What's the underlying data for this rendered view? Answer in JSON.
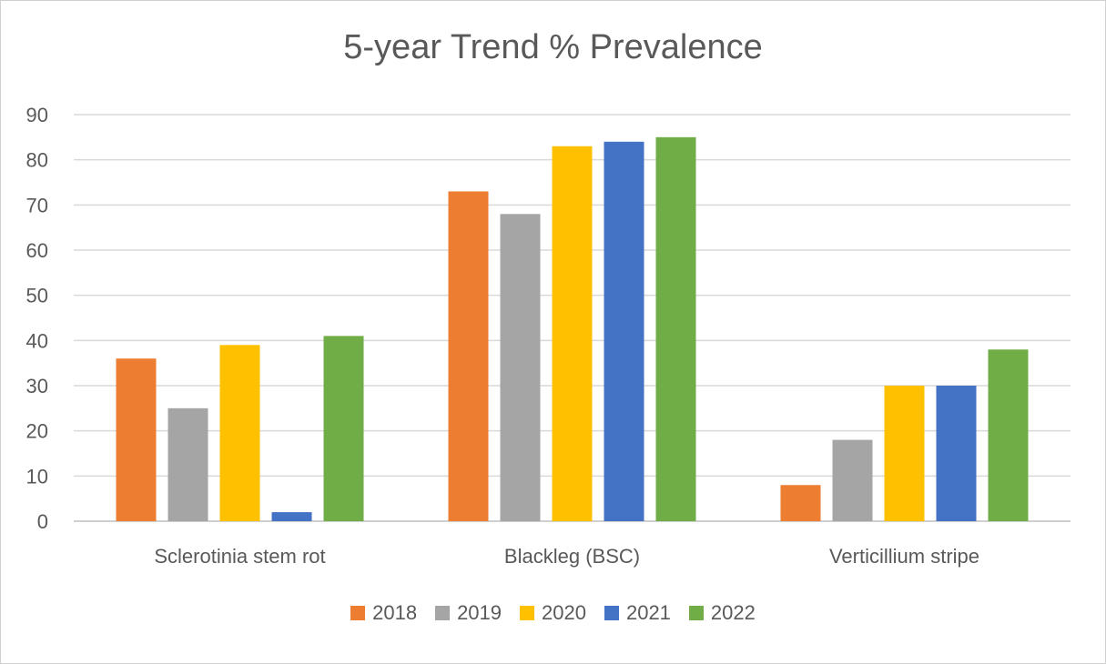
{
  "chart_data": {
    "type": "bar",
    "title": "5-year Trend % Prevalence",
    "xlabel": "",
    "ylabel": "",
    "categories": [
      "Sclerotinia stem rot",
      "Blackleg (BSC)",
      "Verticillium stripe"
    ],
    "series": [
      {
        "name": "2018",
        "color": "#ED7D31",
        "values": [
          36,
          73,
          8
        ]
      },
      {
        "name": "2019",
        "color": "#A5A5A5",
        "values": [
          25,
          68,
          18
        ]
      },
      {
        "name": "2020",
        "color": "#FFC000",
        "values": [
          39,
          83,
          30
        ]
      },
      {
        "name": "2021",
        "color": "#4472C4",
        "values": [
          2,
          84,
          30
        ]
      },
      {
        "name": "2022",
        "color": "#70AD47",
        "values": [
          41,
          85,
          38
        ]
      }
    ],
    "ylim": [
      0,
      90
    ],
    "yticks": [
      0,
      10,
      20,
      30,
      40,
      50,
      60,
      70,
      80,
      90
    ],
    "grid": true,
    "legend_position": "bottom"
  }
}
